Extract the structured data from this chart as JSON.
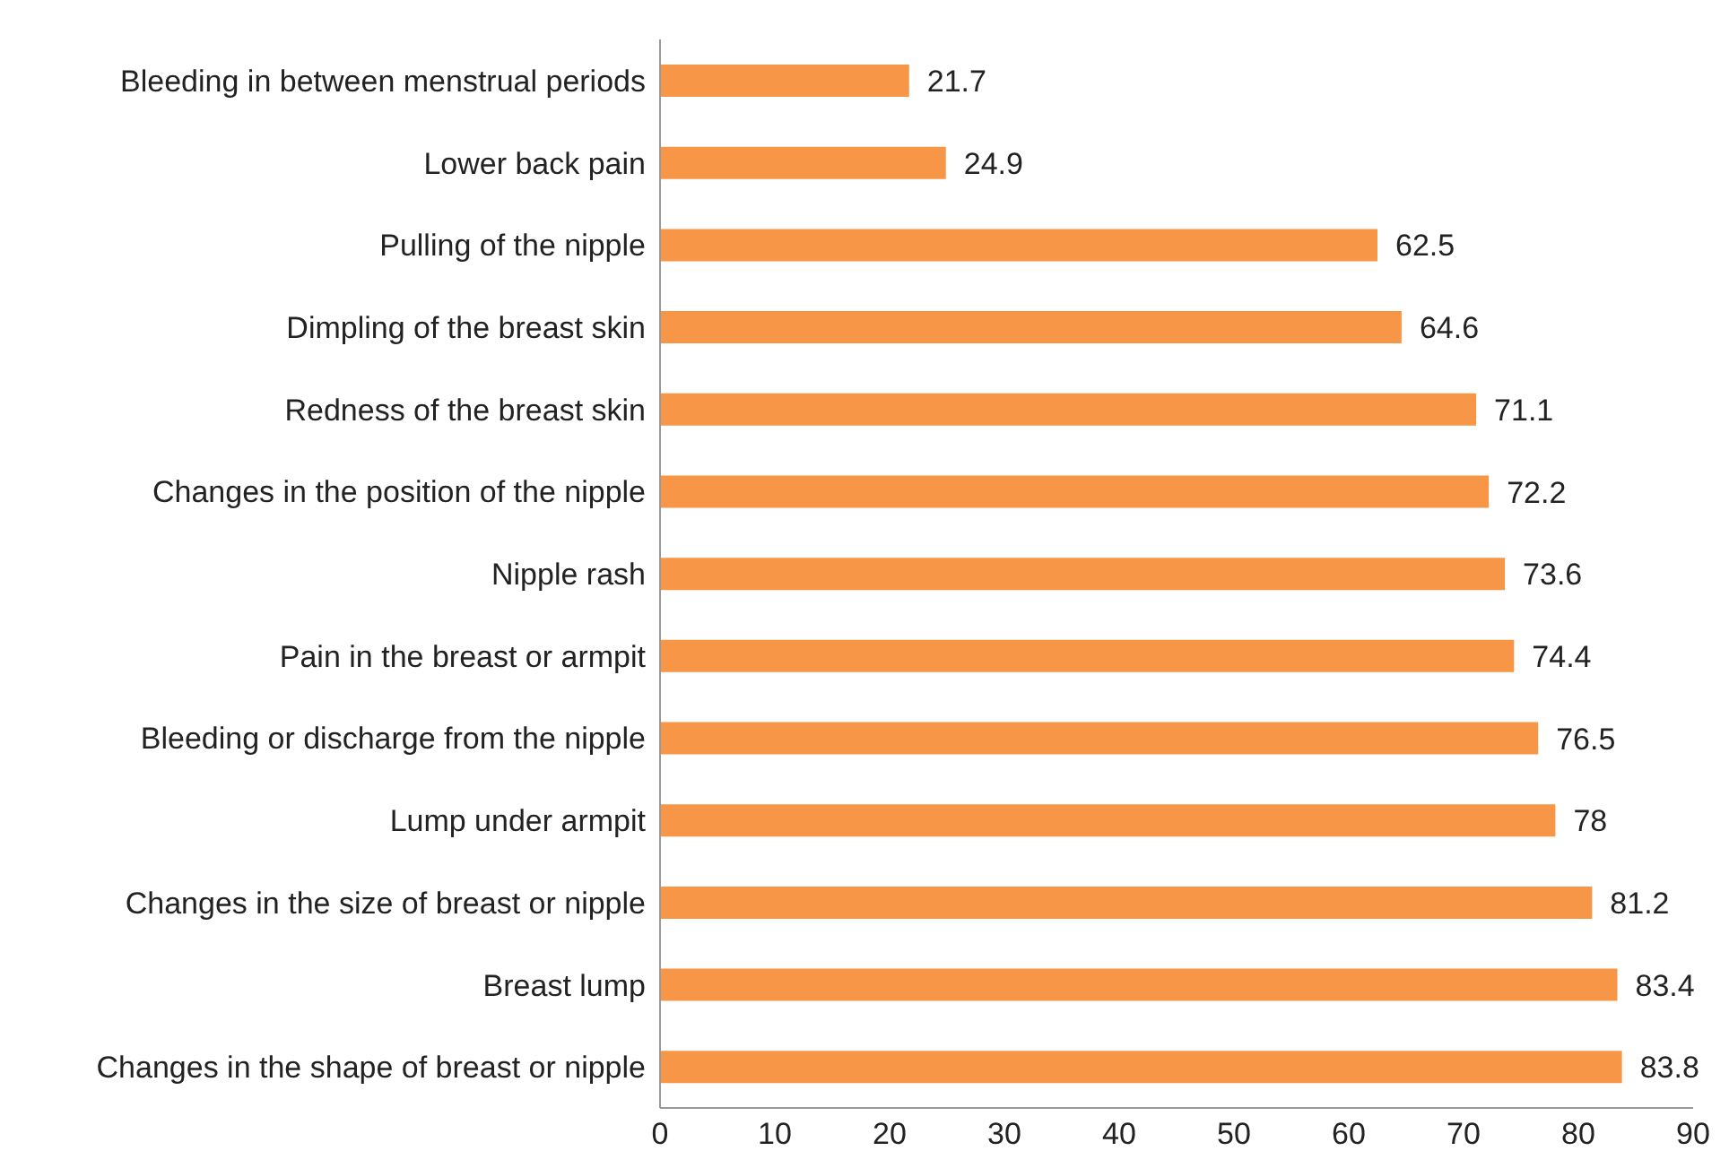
{
  "chart_data": {
    "type": "bar",
    "orientation": "horizontal",
    "categories": [
      "Bleeding in between menstrual periods",
      "Lower back pain",
      "Pulling of the nipple",
      "Dimpling of the breast skin",
      "Redness of the breast skin",
      "Changes in the position of the nipple",
      "Nipple rash",
      "Pain in the breast or armpit",
      "Bleeding or discharge from the nipple",
      "Lump under armpit",
      "Changes in the size of breast or nipple",
      "Breast lump",
      "Changes in the shape of breast or nipple"
    ],
    "values": [
      21.7,
      24.9,
      62.5,
      64.6,
      71.1,
      72.2,
      73.6,
      74.4,
      76.5,
      78,
      81.2,
      83.4,
      83.8
    ],
    "color": "#f79646",
    "xlim": [
      0,
      90
    ],
    "xticks": [
      0,
      10,
      20,
      30,
      40,
      50,
      60,
      70,
      80,
      90
    ],
    "grid": false,
    "legend": false,
    "data_labels": true
  }
}
